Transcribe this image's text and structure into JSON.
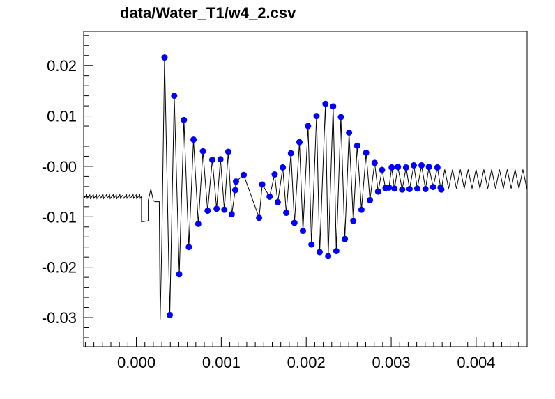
{
  "chart_data": {
    "type": "scatter",
    "title": "data/Water_T1/w4_2.csv",
    "xlabel": "",
    "ylabel": "",
    "xlim": [
      -0.00062,
      0.0046
    ],
    "ylim": [
      -0.0358,
      0.0268
    ],
    "x_ticks": [
      {
        "value": 0.0,
        "label": "0.000"
      },
      {
        "value": 0.001,
        "label": "0.001"
      },
      {
        "value": 0.002,
        "label": "0.002"
      },
      {
        "value": 0.003,
        "label": "0.003"
      },
      {
        "value": 0.004,
        "label": "0.004"
      }
    ],
    "y_ticks": [
      {
        "value": 0.02,
        "label": "0.02"
      },
      {
        "value": 0.01,
        "label": "0.01"
      },
      {
        "value": 0.0,
        "label": "-0.00"
      },
      {
        "value": -0.01,
        "label": "-0.01"
      },
      {
        "value": -0.02,
        "label": "-0.02"
      },
      {
        "value": -0.03,
        "label": "-0.03"
      }
    ],
    "grid": false,
    "legend": "none",
    "colors": {
      "waveform": "#000000",
      "peaks": "#0000ff"
    },
    "peaks": [
      {
        "x": 0.000332,
        "y": 0.0216
      },
      {
        "x": 0.000394,
        "y": -0.0295
      },
      {
        "x": 0.000446,
        "y": 0.014
      },
      {
        "x": 0.000505,
        "y": -0.0214
      },
      {
        "x": 0.00056,
        "y": 0.0092
      },
      {
        "x": 0.000618,
        "y": -0.016
      },
      {
        "x": 0.000673,
        "y": 0.0053
      },
      {
        "x": 0.000729,
        "y": -0.0114
      },
      {
        "x": 0.000784,
        "y": 0.003
      },
      {
        "x": 0.000839,
        "y": -0.0088
      },
      {
        "x": 0.000894,
        "y": 0.0013
      },
      {
        "x": 0.000945,
        "y": -0.0084
      },
      {
        "x": 0.00099,
        "y": 0.0014
      },
      {
        "x": 0.001036,
        "y": -0.0086
      },
      {
        "x": 0.001082,
        "y": 0.0029
      },
      {
        "x": 0.001123,
        "y": -0.0095
      },
      {
        "x": 0.001164,
        "y": -0.0047
      },
      {
        "x": 0.001173,
        "y": -0.003
      },
      {
        "x": 0.001264,
        "y": -0.0017
      },
      {
        "x": 0.001445,
        "y": -0.0102
      },
      {
        "x": 0.001482,
        "y": -0.0036
      },
      {
        "x": 0.001569,
        "y": -0.006
      },
      {
        "x": 0.001628,
        "y": -0.0016
      },
      {
        "x": 0.001665,
        "y": -0.0071
      },
      {
        "x": 0.001724,
        "y": -0.0002
      },
      {
        "x": 0.001765,
        "y": -0.0092
      },
      {
        "x": 0.00182,
        "y": 0.0026
      },
      {
        "x": 0.001861,
        "y": -0.0112
      },
      {
        "x": 0.00192,
        "y": 0.0048
      },
      {
        "x": 0.001961,
        "y": -0.0128
      },
      {
        "x": 0.002021,
        "y": 0.008
      },
      {
        "x": 0.002062,
        "y": -0.0155
      },
      {
        "x": 0.002121,
        "y": 0.01
      },
      {
        "x": 0.002158,
        "y": -0.017
      },
      {
        "x": 0.002226,
        "y": 0.0124
      },
      {
        "x": 0.002258,
        "y": -0.0178
      },
      {
        "x": 0.002317,
        "y": 0.0119
      },
      {
        "x": 0.002354,
        "y": -0.0168
      },
      {
        "x": 0.002408,
        "y": 0.0098
      },
      {
        "x": 0.002454,
        "y": -0.0144
      },
      {
        "x": 0.002504,
        "y": 0.0067
      },
      {
        "x": 0.002554,
        "y": -0.0108
      },
      {
        "x": 0.0026,
        "y": 0.0041
      },
      {
        "x": 0.00265,
        "y": -0.0086
      },
      {
        "x": 0.002705,
        "y": 0.0027
      },
      {
        "x": 0.00275,
        "y": -0.0067
      },
      {
        "x": 0.002805,
        "y": 0.0007
      },
      {
        "x": 0.002846,
        "y": -0.005
      },
      {
        "x": 0.002892,
        "y": -0.0007
      },
      {
        "x": 0.002933,
        "y": -0.0043
      },
      {
        "x": 0.002974,
        "y": -0.0042
      },
      {
        "x": 0.003006,
        "y": -0.0002
      },
      {
        "x": 0.003038,
        "y": -0.0044
      },
      {
        "x": 0.003079,
        "y": -0.0001
      },
      {
        "x": 0.003129,
        "y": -0.0046
      },
      {
        "x": 0.003175,
        "y": -0.0002
      },
      {
        "x": 0.003216,
        "y": -0.0045
      },
      {
        "x": 0.003266,
        "y": 0.0002
      },
      {
        "x": 0.003307,
        "y": -0.0044
      },
      {
        "x": 0.003357,
        "y": 0.0002
      },
      {
        "x": 0.003403,
        "y": -0.0045
      },
      {
        "x": 0.003444,
        "y": -0.0001
      },
      {
        "x": 0.003494,
        "y": -0.0041
      },
      {
        "x": 0.003544,
        "y": -0.0002
      },
      {
        "x": 0.003581,
        "y": -0.0042
      },
      {
        "x": 0.00359,
        "y": -0.0046
      }
    ]
  }
}
